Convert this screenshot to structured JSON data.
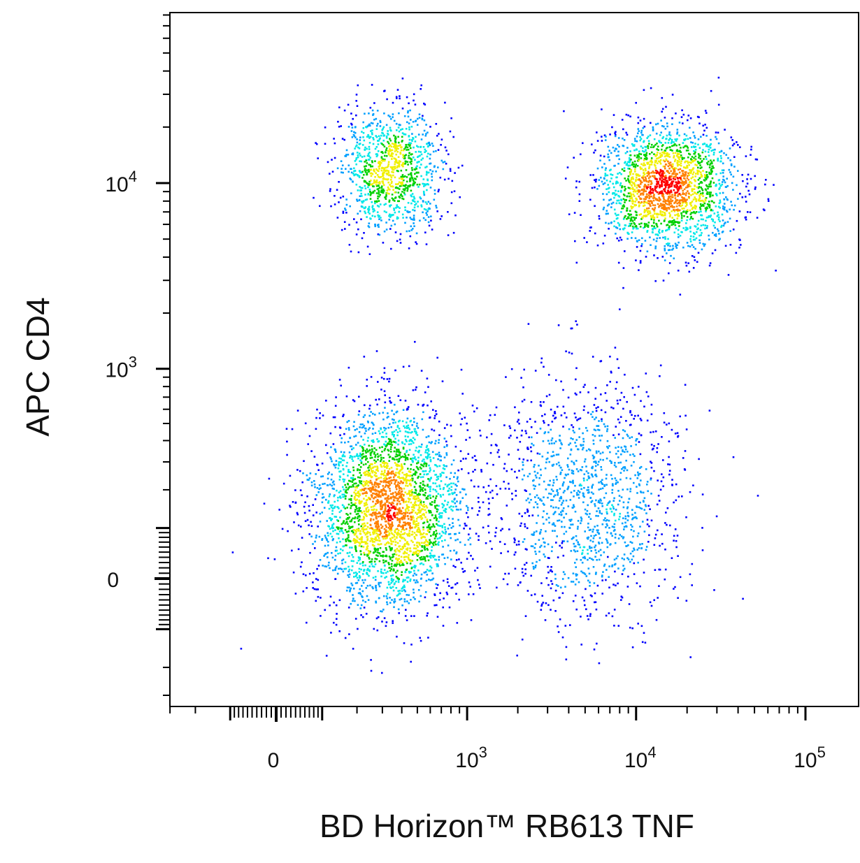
{
  "chart_data": {
    "type": "scatter",
    "subtype": "flow-cytometry-pseudocolor-density",
    "xlabel": "BD Horizon™ RB613 TNF",
    "ylabel": "APC CD4",
    "x_scale": "biexponential",
    "y_scale": "biexponential",
    "x_ticks": [
      {
        "label": "0",
        "base": "",
        "exp": "",
        "value": 0
      },
      {
        "label": "10^3",
        "base": "10",
        "exp": "3",
        "value": 1000
      },
      {
        "label": "10^4",
        "base": "10",
        "exp": "4",
        "value": 10000
      },
      {
        "label": "10^5",
        "base": "10",
        "exp": "5",
        "value": 100000
      }
    ],
    "y_ticks": [
      {
        "label": "0",
        "base": "",
        "exp": "",
        "value": 0
      },
      {
        "label": "10^3",
        "base": "10",
        "exp": "3",
        "value": 1000
      },
      {
        "label": "10^4",
        "base": "10",
        "exp": "4",
        "value": 10000
      }
    ],
    "xlim": [
      -700,
      250000
    ],
    "ylim": [
      -600,
      80000
    ],
    "grid": false,
    "legend": "none",
    "density_colormap": [
      "#0000ff",
      "#00a0ff",
      "#00e8e8",
      "#00d000",
      "#f0f000",
      "#ff8000",
      "#ff0000"
    ],
    "populations": [
      {
        "name": "",
        "center_x": 330,
        "center_y": 150,
        "spread_x": 240,
        "spread_y": 170,
        "events": 3000
      },
      {
        "name": "",
        "center_x": 340,
        "center_y": 12000,
        "spread_x": 160,
        "spread_y": 5500,
        "events": 1100
      },
      {
        "name": "",
        "center_x": 15000,
        "center_y": 9500,
        "spread_x": 9000,
        "spread_y": 4500,
        "events": 2000
      },
      {
        "name": "",
        "center_x": 5000,
        "center_y": 180,
        "spread_x": 4500,
        "spread_y": 230,
        "events": 1300
      }
    ],
    "total_events_shown": 8500
  }
}
